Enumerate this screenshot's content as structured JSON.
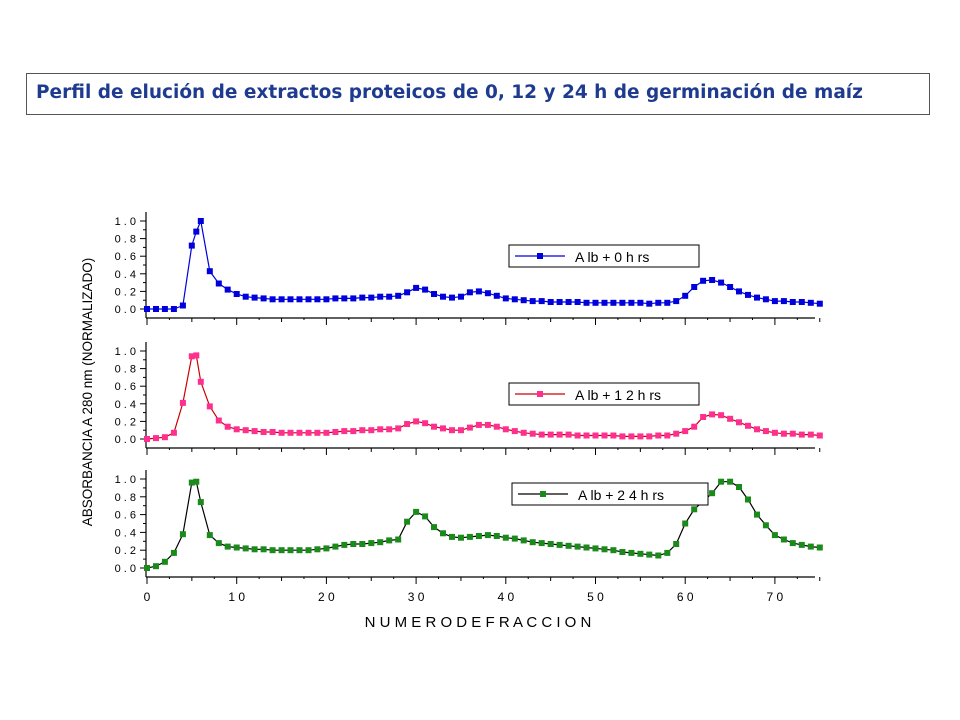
{
  "title": "Perfil de elución de extractos proteicos de 0, 12 y 24 h de germinación de maíz",
  "chart_data": {
    "type": "line",
    "xlabel": "N U M E R O   D E   F R A C C I O N",
    "ylabel": "ABSORBANCIA A 280 nm (NORMALIZADO)",
    "xlim": [
      0,
      75
    ],
    "x_ticks": [
      "0",
      "1 0",
      "2 0",
      "3 0",
      "4 0",
      "5 0",
      "6 0",
      "7 0"
    ],
    "x_tick_values": [
      0,
      10,
      20,
      30,
      40,
      50,
      60,
      70
    ],
    "ylim": [
      0,
      1.0
    ],
    "y_ticks": [
      "0 . 0",
      "0 . 2",
      "0 . 4",
      "0 . 6",
      "0 . 8",
      "1 . 0"
    ],
    "y_tick_values": [
      0,
      0.2,
      0.4,
      0.6,
      0.8,
      1.0
    ],
    "grid": false,
    "colors": {
      "axis": "#000000",
      "title_text": "#1f3b8f"
    },
    "panels": [
      {
        "series": [
          {
            "name": "A lb  +  0  h rs",
            "color": "#0000dd",
            "line_color": "#0000dd",
            "x": [
              0,
              1,
              2,
              3,
              4,
              5,
              5.5,
              6,
              7,
              8,
              9,
              10,
              11,
              12,
              13,
              14,
              15,
              16,
              17,
              18,
              19,
              20,
              21,
              22,
              23,
              24,
              25,
              26,
              27,
              28,
              29,
              30,
              31,
              32,
              33,
              34,
              35,
              36,
              37,
              38,
              39,
              40,
              41,
              42,
              43,
              44,
              45,
              46,
              47,
              48,
              49,
              50,
              51,
              52,
              53,
              54,
              55,
              56,
              57,
              58,
              59,
              60,
              61,
              62,
              63,
              64,
              65,
              66,
              67,
              68,
              69,
              70,
              71,
              72,
              73,
              74,
              75
            ],
            "y": [
              0.0,
              0.0,
              0.0,
              0.0,
              0.04,
              0.72,
              0.88,
              1.0,
              0.43,
              0.29,
              0.22,
              0.17,
              0.14,
              0.13,
              0.12,
              0.11,
              0.11,
              0.11,
              0.11,
              0.11,
              0.11,
              0.11,
              0.12,
              0.12,
              0.12,
              0.13,
              0.13,
              0.14,
              0.14,
              0.15,
              0.19,
              0.24,
              0.22,
              0.17,
              0.14,
              0.13,
              0.14,
              0.19,
              0.2,
              0.18,
              0.15,
              0.12,
              0.11,
              0.1,
              0.09,
              0.09,
              0.08,
              0.08,
              0.08,
              0.08,
              0.07,
              0.07,
              0.07,
              0.07,
              0.07,
              0.07,
              0.07,
              0.06,
              0.07,
              0.07,
              0.09,
              0.15,
              0.25,
              0.32,
              0.33,
              0.3,
              0.25,
              0.2,
              0.16,
              0.13,
              0.11,
              0.09,
              0.09,
              0.08,
              0.08,
              0.07,
              0.06
            ]
          }
        ],
        "legend": "right"
      },
      {
        "series": [
          {
            "name": "A lb  +  1 2  h rs",
            "color": "#ff2f8f",
            "line_color": "#cc0000",
            "x": [
              0,
              1,
              2,
              3,
              4,
              5,
              5.5,
              6,
              7,
              8,
              9,
              10,
              11,
              12,
              13,
              14,
              15,
              16,
              17,
              18,
              19,
              20,
              21,
              22,
              23,
              24,
              25,
              26,
              27,
              28,
              29,
              30,
              31,
              32,
              33,
              34,
              35,
              36,
              37,
              38,
              39,
              40,
              41,
              42,
              43,
              44,
              45,
              46,
              47,
              48,
              49,
              50,
              51,
              52,
              53,
              54,
              55,
              56,
              57,
              58,
              59,
              60,
              61,
              62,
              63,
              64,
              65,
              66,
              67,
              68,
              69,
              70,
              71,
              72,
              73,
              74,
              75
            ],
            "y": [
              0.0,
              0.01,
              0.02,
              0.07,
              0.41,
              0.94,
              0.95,
              0.65,
              0.37,
              0.21,
              0.14,
              0.11,
              0.1,
              0.09,
              0.08,
              0.08,
              0.07,
              0.07,
              0.07,
              0.07,
              0.07,
              0.07,
              0.08,
              0.09,
              0.09,
              0.1,
              0.1,
              0.11,
              0.11,
              0.12,
              0.17,
              0.2,
              0.18,
              0.14,
              0.12,
              0.1,
              0.1,
              0.13,
              0.16,
              0.16,
              0.14,
              0.11,
              0.09,
              0.07,
              0.06,
              0.05,
              0.05,
              0.05,
              0.05,
              0.04,
              0.04,
              0.04,
              0.04,
              0.04,
              0.03,
              0.03,
              0.03,
              0.03,
              0.04,
              0.04,
              0.06,
              0.09,
              0.14,
              0.25,
              0.28,
              0.27,
              0.23,
              0.19,
              0.15,
              0.11,
              0.09,
              0.07,
              0.06,
              0.06,
              0.05,
              0.05,
              0.04
            ]
          }
        ],
        "legend": "right"
      },
      {
        "series": [
          {
            "name": "A lb  +  2 4  h rs",
            "color": "#1a8a1a",
            "line_color": "#000000",
            "x": [
              0,
              1,
              2,
              3,
              4,
              5,
              5.5,
              6,
              7,
              8,
              9,
              10,
              11,
              12,
              13,
              14,
              15,
              16,
              17,
              18,
              19,
              20,
              21,
              22,
              23,
              24,
              25,
              26,
              27,
              28,
              29,
              30,
              31,
              32,
              33,
              34,
              35,
              36,
              37,
              38,
              39,
              40,
              41,
              42,
              43,
              44,
              45,
              46,
              47,
              48,
              49,
              50,
              51,
              52,
              53,
              54,
              55,
              56,
              57,
              58,
              59,
              60,
              61,
              62,
              63,
              64,
              65,
              66,
              67,
              68,
              69,
              70,
              71,
              72,
              73,
              74,
              75
            ],
            "y": [
              0.0,
              0.02,
              0.07,
              0.17,
              0.38,
              0.96,
              0.97,
              0.74,
              0.37,
              0.28,
              0.24,
              0.23,
              0.22,
              0.21,
              0.21,
              0.2,
              0.2,
              0.2,
              0.2,
              0.2,
              0.21,
              0.22,
              0.24,
              0.26,
              0.27,
              0.27,
              0.28,
              0.29,
              0.31,
              0.32,
              0.52,
              0.63,
              0.58,
              0.46,
              0.39,
              0.35,
              0.34,
              0.35,
              0.36,
              0.37,
              0.36,
              0.34,
              0.33,
              0.31,
              0.29,
              0.28,
              0.27,
              0.26,
              0.25,
              0.24,
              0.23,
              0.22,
              0.21,
              0.2,
              0.18,
              0.17,
              0.16,
              0.15,
              0.14,
              0.17,
              0.27,
              0.5,
              0.66,
              0.75,
              0.84,
              0.97,
              0.97,
              0.91,
              0.77,
              0.6,
              0.48,
              0.37,
              0.32,
              0.28,
              0.26,
              0.24,
              0.23
            ]
          }
        ],
        "legend": "right"
      }
    ]
  }
}
